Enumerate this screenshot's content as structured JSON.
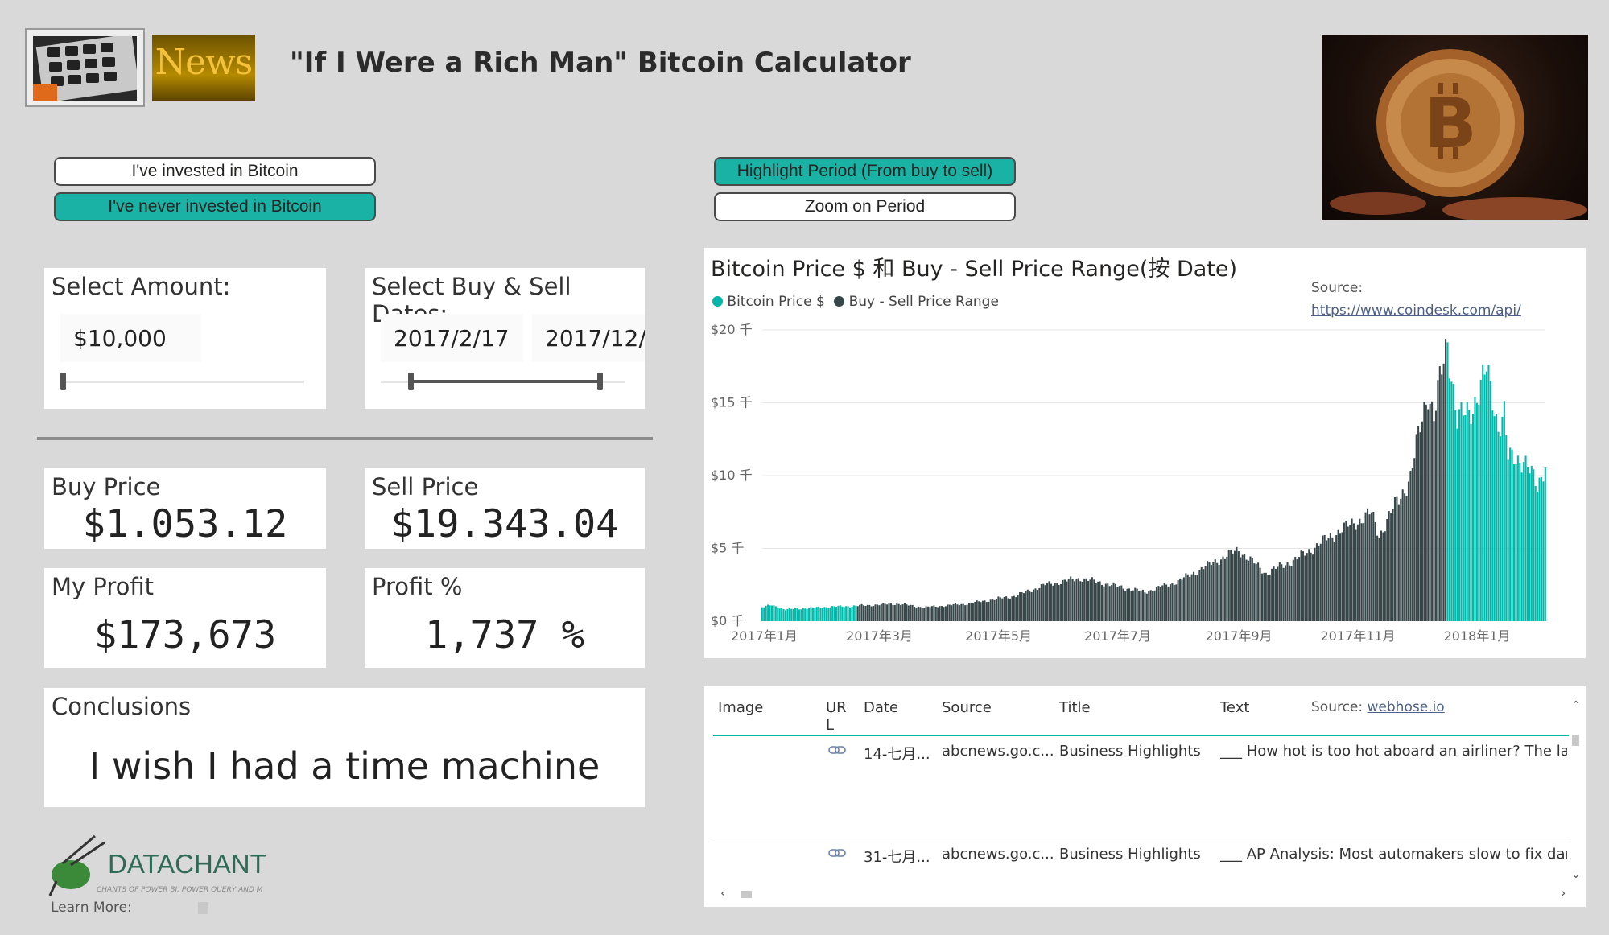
{
  "header": {
    "title": "\"If I Were a Rich Man\" Bitcoin Calculator",
    "news_logo_text": "News"
  },
  "investment_toggle": {
    "invested_label": "I've invested in Bitcoin",
    "never_invested_label": "I've never invested in Bitcoin",
    "selected": "never_invested"
  },
  "chart_mode": {
    "highlight_label": "Highlight Period (From buy to sell)",
    "zoom_label": "Zoom on Period",
    "selected": "highlight"
  },
  "amount_slicer": {
    "title": "Select Amount:",
    "value": "$10,000",
    "slider_fraction": 0.0
  },
  "date_slicer": {
    "title": "Select Buy & Sell Dates:",
    "start": "2017/2/17",
    "end": "2017/12/"
  },
  "kpis": {
    "buy_price_label": "Buy Price",
    "buy_price_value": "$1.053.12",
    "sell_price_label": "Sell Price",
    "sell_price_value": "$19.343.04",
    "profit_label": "My Profit",
    "profit_value": "$173,673",
    "profit_pct_label": "Profit %",
    "profit_pct_value": "1,737 %"
  },
  "conclusions": {
    "title": "Conclusions",
    "text": "I wish I had a time machine"
  },
  "branding": {
    "logo_name": "DATACHANT",
    "tagline": "CHANTS OF POWER BI, POWER QUERY AND M",
    "learn_more": "Learn More:"
  },
  "chart_data": {
    "type": "bar",
    "title": "Bitcoin Price $ 和 Buy - Sell Price Range(按 Date)",
    "source_label": "Source:",
    "source_url": "https://www.coindesk.com/api/",
    "series": [
      {
        "name": "Bitcoin Price $",
        "color": "#374649"
      },
      {
        "name": "Buy - Sell Price Range",
        "color": "#01b8aa"
      }
    ],
    "legend_labels": [
      "Bitcoin Price $",
      "Buy - Sell Price Range"
    ],
    "legend_position": "top-left",
    "y_ticks": [
      "$0 千",
      "$5 千",
      "$10 千",
      "$15 千",
      "$20 千"
    ],
    "ylim": [
      0,
      20000
    ],
    "x_ticks": [
      "2017年1月",
      "2017年3月",
      "2017年5月",
      "2017年7月",
      "2017年9月",
      "2017年11月",
      "2018年1月"
    ],
    "x_range": [
      "2016-12-31",
      "2018-02-05"
    ],
    "anchors": [
      {
        "date": "2016-12-31",
        "price": 960
      },
      {
        "date": "2017-01-05",
        "price": 1100
      },
      {
        "date": "2017-01-12",
        "price": 800
      },
      {
        "date": "2017-02-01",
        "price": 970
      },
      {
        "date": "2017-02-17",
        "price": 1053
      },
      {
        "date": "2017-03-10",
        "price": 1200
      },
      {
        "date": "2017-03-24",
        "price": 950
      },
      {
        "date": "2017-04-15",
        "price": 1200
      },
      {
        "date": "2017-05-10",
        "price": 1750
      },
      {
        "date": "2017-05-25",
        "price": 2500
      },
      {
        "date": "2017-06-12",
        "price": 2950
      },
      {
        "date": "2017-07-15",
        "price": 2000
      },
      {
        "date": "2017-08-01",
        "price": 2750
      },
      {
        "date": "2017-08-20",
        "price": 4100
      },
      {
        "date": "2017-09-01",
        "price": 4900
      },
      {
        "date": "2017-09-15",
        "price": 3300
      },
      {
        "date": "2017-10-01",
        "price": 4300
      },
      {
        "date": "2017-10-20",
        "price": 6000
      },
      {
        "date": "2017-11-08",
        "price": 7400
      },
      {
        "date": "2017-11-12",
        "price": 5900
      },
      {
        "date": "2017-11-28",
        "price": 9900
      },
      {
        "date": "2017-12-07",
        "price": 16000
      },
      {
        "date": "2017-12-10",
        "price": 14000
      },
      {
        "date": "2017-12-17",
        "price": 19343
      },
      {
        "date": "2017-12-22",
        "price": 13800
      },
      {
        "date": "2017-12-28",
        "price": 14300
      },
      {
        "date": "2018-01-06",
        "price": 17100
      },
      {
        "date": "2018-01-12",
        "price": 13500
      },
      {
        "date": "2018-01-15",
        "price": 14300
      },
      {
        "date": "2018-01-17",
        "price": 11100
      },
      {
        "date": "2018-01-25",
        "price": 11200
      },
      {
        "date": "2018-02-01",
        "price": 9100
      },
      {
        "date": "2018-02-05",
        "price": 11000
      }
    ],
    "highlight_ranges": [
      {
        "start": "2016-12-31",
        "end": "2017-02-17"
      },
      {
        "start": "2017-12-17",
        "end": "2018-02-05"
      }
    ]
  },
  "news_table": {
    "headers": [
      "Image",
      "UR L",
      "Date",
      "Source",
      "Title",
      "Text"
    ],
    "source_label": "Source:",
    "source_link": "webhose.io",
    "rows": [
      {
        "date": "14-七月...",
        "source": "abcnews.go.c...",
        "title": "Business Highlights",
        "text": "___ How hot is too hot aboard an airliner? The law dc"
      },
      {
        "date": "31-七月...",
        "source": "abcnews.go.c...",
        "title": "Business Highlights",
        "text": "___ AP Analysis: Most automakers slow to fix dangerc"
      }
    ]
  },
  "colors": {
    "accent": "#19b2a4",
    "dark_bar": "#374649",
    "highlight_bar": "#01b8aa",
    "background": "#d9d9d9"
  }
}
